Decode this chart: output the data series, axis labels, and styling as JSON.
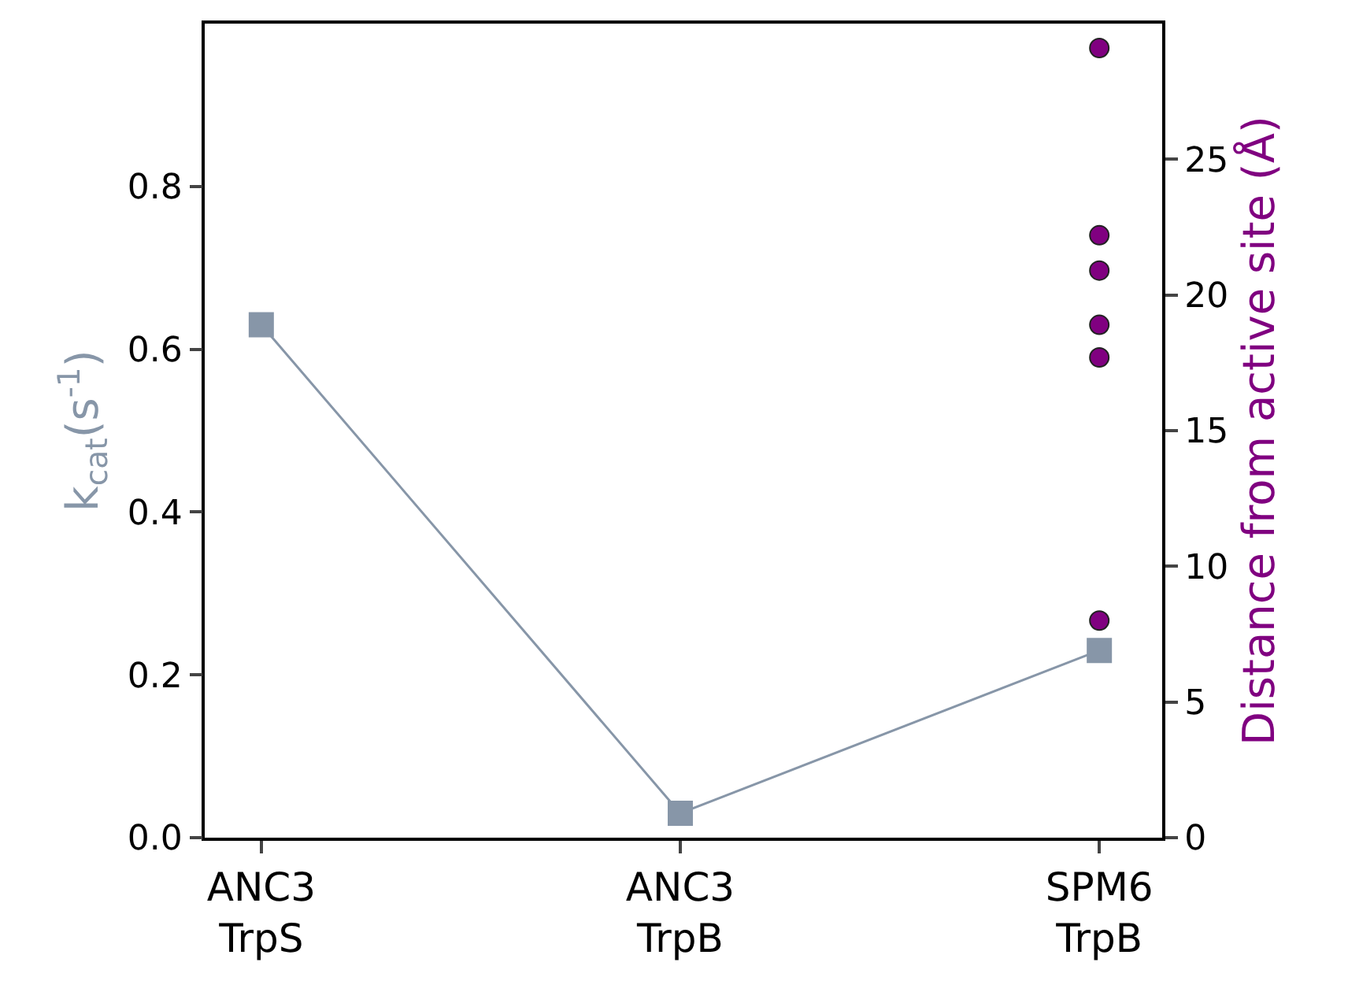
{
  "chart_data": {
    "type": "line",
    "categories": [
      "ANC3\nTrpS",
      "ANC3\nTrpB",
      "SPM6\nTrpB"
    ],
    "ylabel": "k$_{cat}$(s$^{-1}$)",
    "y2label": "Distance from active site (Å)",
    "ylim": [
      0,
      1.0
    ],
    "yticks": [
      {
        "value": 0,
        "label": "0.0"
      },
      0.2,
      0.4,
      0.6,
      0.8
    ],
    "y2lim": [
      0,
      30
    ],
    "y2ticks": [
      0,
      5,
      10,
      15,
      20,
      25
    ],
    "grid": false,
    "series": [
      {
        "color": "#8796a8",
        "marker": "square",
        "line_style": "solid",
        "values": [
          0.63,
          0.03,
          0.23
        ]
      },
      {
        "type": "scatter",
        "axis": "y2",
        "color": "#800080",
        "marker": "circle",
        "x": [
          "SPM6\nTrpB",
          "SPM6\nTrpB",
          "SPM6\nTrpB",
          "SPM6\nTrpB",
          "SPM6\nTrpB",
          "SPM6\nTrpB"
        ],
        "values": [
          29.1,
          22.2,
          20.9,
          18.9,
          17.7,
          8.0
        ]
      }
    ]
  }
}
